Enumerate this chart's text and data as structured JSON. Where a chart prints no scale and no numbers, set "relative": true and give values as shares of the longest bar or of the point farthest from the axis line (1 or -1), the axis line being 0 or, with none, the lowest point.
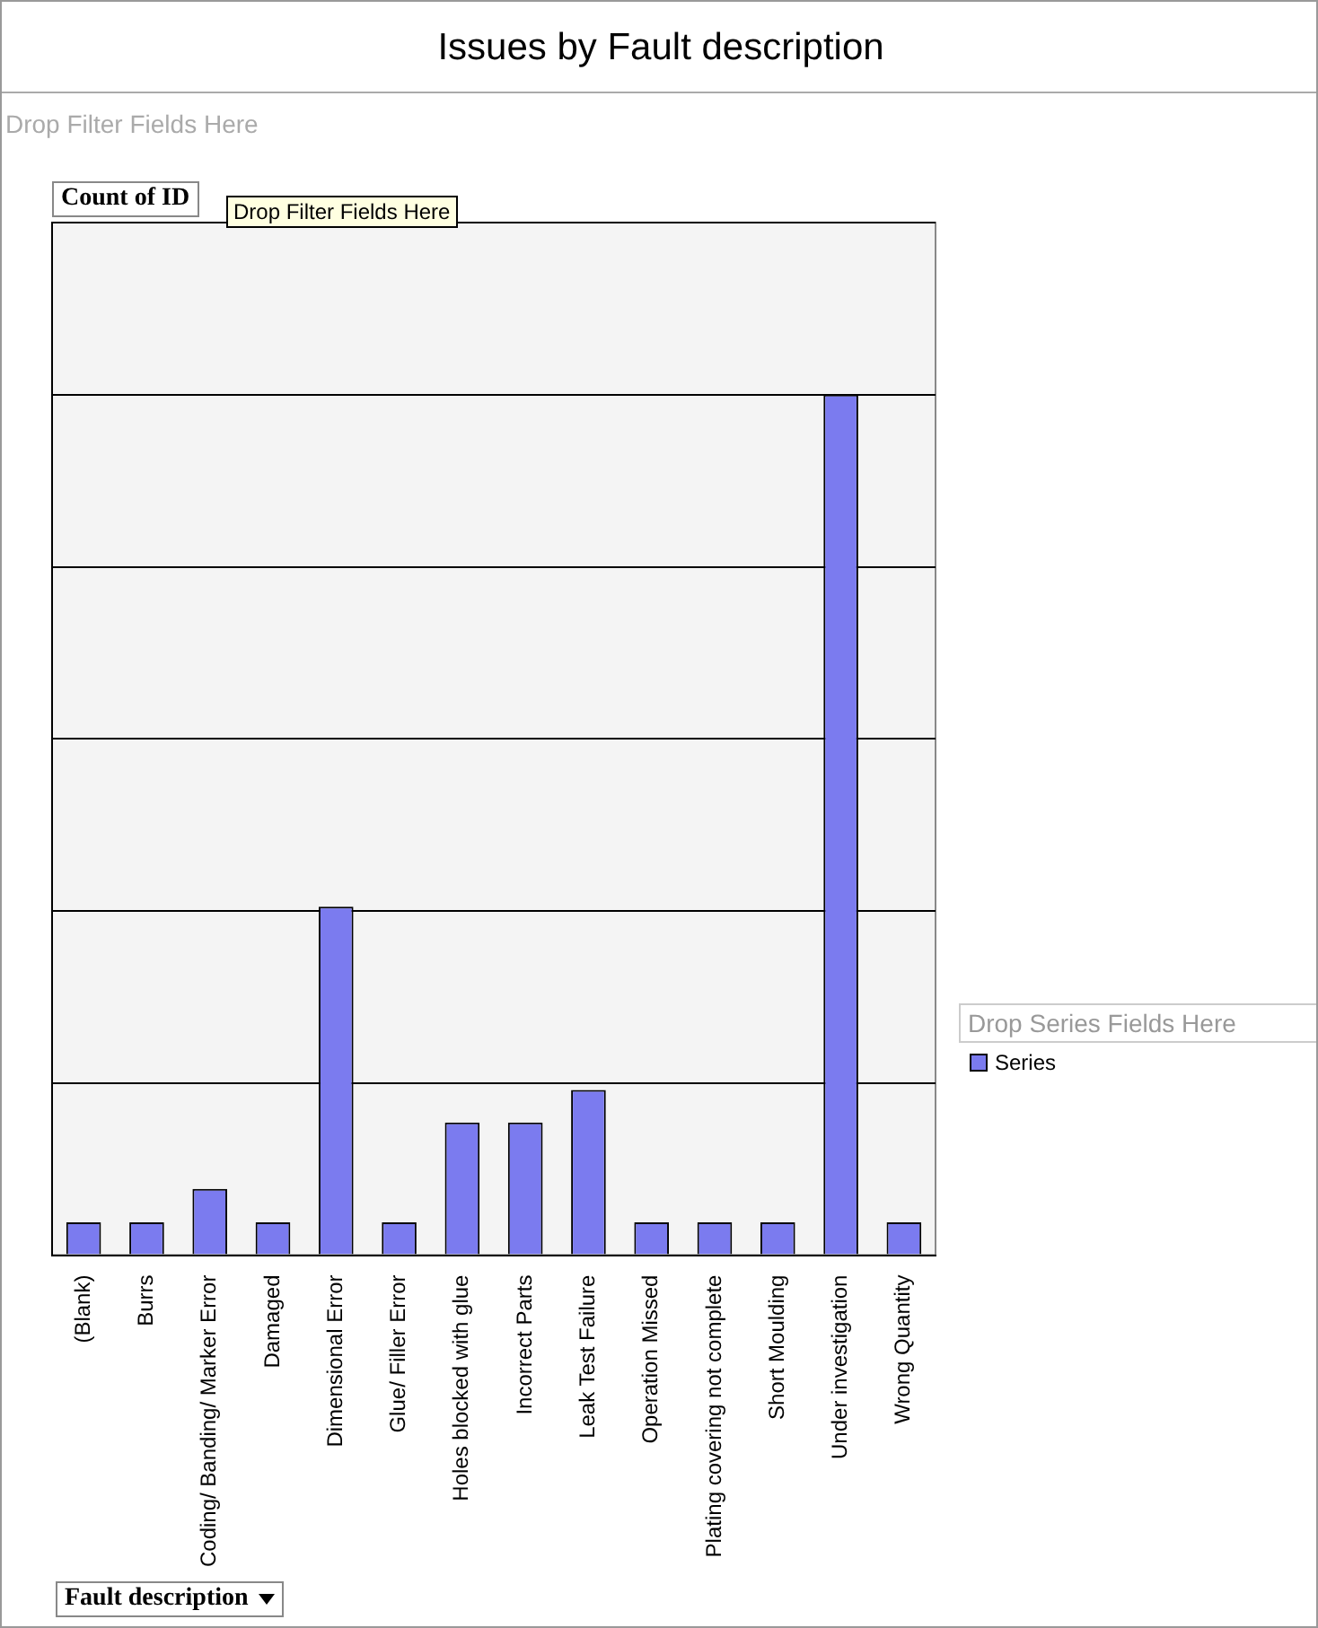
{
  "chart_data": {
    "type": "bar",
    "title": "Issues by Fault description",
    "xlabel": "Fault description",
    "legend_title": "Drop Series Fields Here",
    "annotations": [
      "Drop Filter Fields Here",
      "Count of ID",
      "Drop Filter Fields Here"
    ],
    "categories": [
      "(Blank)",
      "Burrs",
      "Coding/ Banding/ Marker Error",
      "Damaged",
      "Dimensional Error",
      "Glue/ Filler Error",
      "Holes blocked with glue",
      "Incorrect Parts",
      "Leak Test Failure",
      "Operation Missed",
      "Plating covering not complete",
      "Short Moulding",
      "Under investigation",
      "Wrong Quantity"
    ],
    "series": [
      {
        "name": "Series",
        "color": "#7b7bef",
        "values": [
          0.038,
          0.038,
          0.077,
          0.038,
          0.405,
          0.038,
          0.154,
          0.154,
          0.192,
          0.038,
          0.038,
          0.038,
          1,
          0.038
        ]
      }
    ],
    "relative": true,
    "grid": "y",
    "legend": "right"
  }
}
